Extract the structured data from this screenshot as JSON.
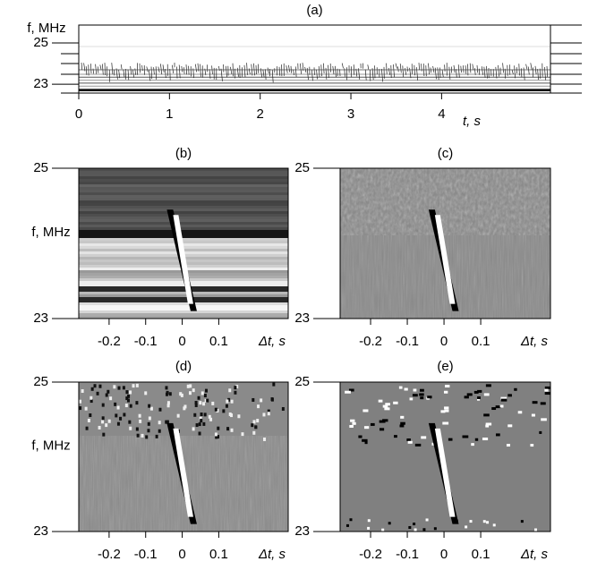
{
  "chart_data": [
    {
      "type": "spectrogram",
      "title": "(a)",
      "xlabel": "t, s",
      "ylabel": "f, MHz",
      "xlim": [
        0,
        5.2
      ],
      "ylim": [
        22.57,
        25.87
      ],
      "xticks": [
        0,
        1,
        2,
        3,
        4
      ],
      "yticks": [
        23,
        25
      ]
    },
    {
      "type": "spectrogram",
      "title": "(b)",
      "xlabel": "Δt, s",
      "ylabel": "f, MHz",
      "xlim": [
        -0.283,
        0.29
      ],
      "ylim": [
        23,
        25
      ],
      "xticks": [
        -0.2,
        -0.1,
        0,
        0.1
      ],
      "yticks": [
        23,
        25
      ]
    },
    {
      "type": "spectrogram",
      "title": "(c)",
      "xlabel": "Δt, s",
      "xlim": [
        -0.283,
        0.29
      ],
      "ylim": [
        23,
        25
      ],
      "xticks": [
        -0.2,
        -0.1,
        0,
        0.1
      ],
      "yticks": [
        23,
        25
      ]
    },
    {
      "type": "spectrogram",
      "title": "(d)",
      "xlabel": "Δt, s",
      "ylabel": "f, MHz",
      "xlim": [
        -0.283,
        0.29
      ],
      "ylim": [
        23,
        25
      ],
      "xticks": [
        -0.2,
        -0.1,
        0,
        0.1
      ],
      "yticks": [
        23,
        25
      ]
    },
    {
      "type": "spectrogram",
      "title": "(e)",
      "xlabel": "Δt, s",
      "xlim": [
        -0.283,
        0.29
      ],
      "ylim": [
        23,
        25
      ],
      "xticks": [
        -0.2,
        -0.1,
        0,
        0.1
      ],
      "yticks": [
        23,
        25
      ]
    }
  ]
}
